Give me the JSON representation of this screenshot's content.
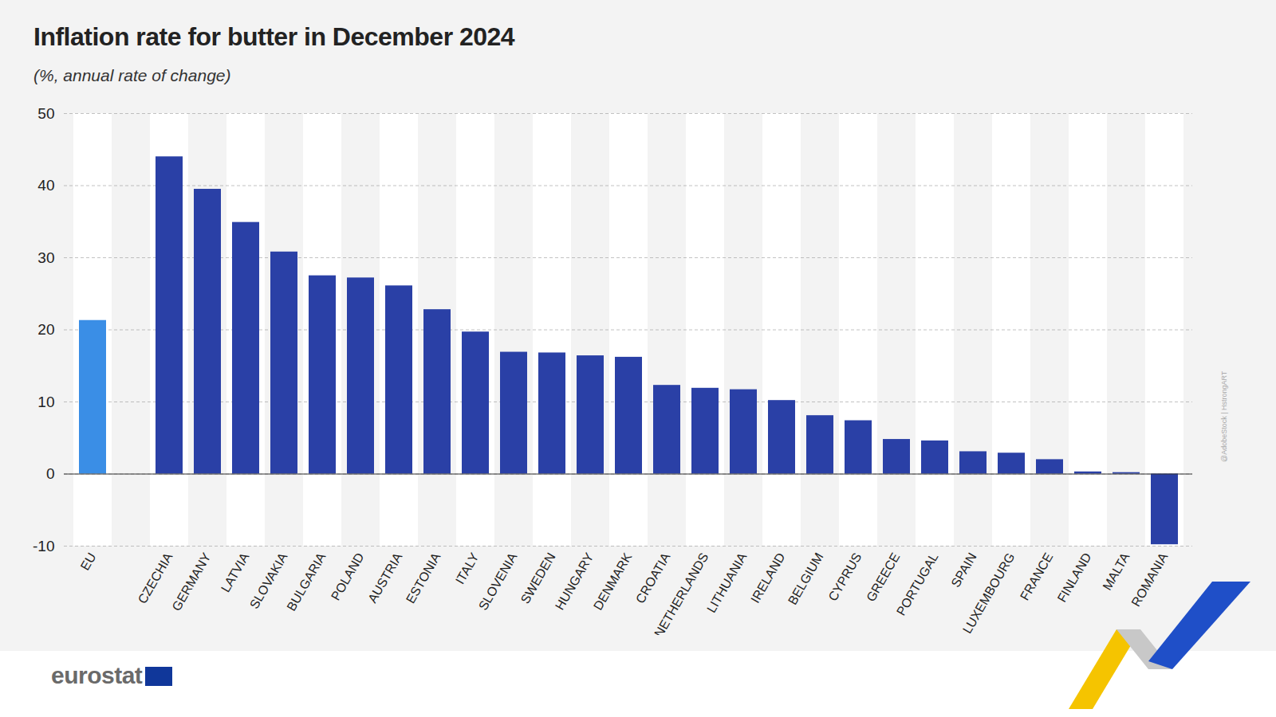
{
  "chart_data": {
    "type": "bar",
    "title": "Inflation rate for butter in December 2024",
    "subtitle": "(%, annual rate of change)",
    "categories": [
      "EU",
      null,
      "CZECHIA",
      "GERMANY",
      "LATVIA",
      "SLOVAKIA",
      "BULGARIA",
      "POLAND",
      "AUSTRIA",
      "ESTONIA",
      "ITALY",
      "SLOVENIA",
      "SWEDEN",
      "HUNGARY",
      "DENMARK",
      "CROATIA",
      "NETHERLANDS",
      "LITHUANIA",
      "IRELAND",
      "BELGIUM",
      "CYPRUS",
      "GREECE",
      "PORTUGAL",
      "SPAIN",
      "LUXEMBOURG",
      "FRANCE",
      "FINLAND",
      "MALTA",
      "ROMANIA"
    ],
    "values": [
      21.3,
      null,
      44.0,
      39.5,
      34.9,
      30.8,
      27.5,
      27.2,
      26.1,
      22.8,
      19.7,
      16.9,
      16.8,
      16.4,
      16.2,
      12.3,
      11.9,
      11.7,
      10.2,
      8.1,
      7.4,
      4.8,
      4.6,
      3.1,
      2.9,
      2.0,
      0.3,
      0.2,
      -9.8
    ],
    "colors": [
      "#3a8ee6",
      null,
      "#2a40a6",
      "#2a40a6",
      "#2a40a6",
      "#2a40a6",
      "#2a40a6",
      "#2a40a6",
      "#2a40a6",
      "#2a40a6",
      "#2a40a6",
      "#2a40a6",
      "#2a40a6",
      "#2a40a6",
      "#2a40a6",
      "#2a40a6",
      "#2a40a6",
      "#2a40a6",
      "#2a40a6",
      "#2a40a6",
      "#2a40a6",
      "#2a40a6",
      "#2a40a6",
      "#2a40a6",
      "#2a40a6",
      "#2a40a6",
      "#2a40a6",
      "#2a40a6",
      "#2a40a6"
    ],
    "ylim": [
      -10,
      50
    ],
    "yticks": [
      -10,
      0,
      10,
      20,
      30,
      40,
      50
    ],
    "grid": true,
    "footer": "eurostat",
    "credit": "@AdobeStock | HstrongART"
  }
}
